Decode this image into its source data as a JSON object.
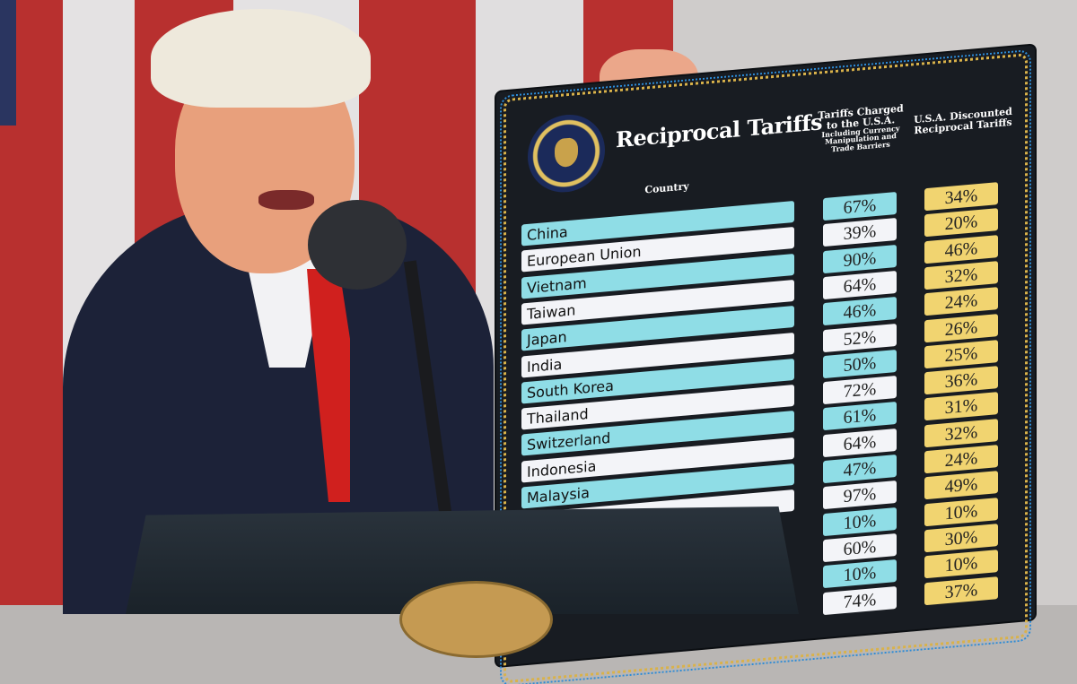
{
  "scene": {
    "colors": {
      "flag_red": "#b8302f",
      "flag_white": "#e4e2e3",
      "suit": "#1c2238",
      "tie": "#d0201e",
      "board": "#181c22",
      "row_cyan": "#8fdde6",
      "row_white": "#f3f4f8",
      "row_gold": "#f1d470"
    }
  },
  "board": {
    "title": "Reciprocal Tariffs",
    "seal_icon": "presidential-seal",
    "header_country": "Country",
    "header_charged": "Tariffs Charged to the U.S.A.",
    "header_charged_note": "Including Currency Manipulation and Trade Barriers",
    "header_discounted": "U.S.A. Discounted Reciprocal Tariffs",
    "rows": [
      {
        "country": "China",
        "charged": "67%",
        "reciprocal": "34%"
      },
      {
        "country": "European Union",
        "charged": "39%",
        "reciprocal": "20%"
      },
      {
        "country": "Vietnam",
        "charged": "90%",
        "reciprocal": "46%"
      },
      {
        "country": "Taiwan",
        "charged": "64%",
        "reciprocal": "32%"
      },
      {
        "country": "Japan",
        "charged": "46%",
        "reciprocal": "24%"
      },
      {
        "country": "India",
        "charged": "52%",
        "reciprocal": "26%"
      },
      {
        "country": "South Korea",
        "charged": "50%",
        "reciprocal": "25%"
      },
      {
        "country": "Thailand",
        "charged": "72%",
        "reciprocal": "36%"
      },
      {
        "country": "Switzerland",
        "charged": "61%",
        "reciprocal": "31%"
      },
      {
        "country": "Indonesia",
        "charged": "64%",
        "reciprocal": "32%"
      },
      {
        "country": "Malaysia",
        "charged": "47%",
        "reciprocal": "24%"
      },
      {
        "country": "",
        "charged": "97%",
        "reciprocal": "49%"
      },
      {
        "country": "",
        "charged": "10%",
        "reciprocal": "10%"
      },
      {
        "country": "",
        "charged": "60%",
        "reciprocal": "30%"
      },
      {
        "country": "",
        "charged": "10%",
        "reciprocal": "10%"
      },
      {
        "country": "",
        "charged": "74%",
        "reciprocal": "37%"
      }
    ]
  }
}
